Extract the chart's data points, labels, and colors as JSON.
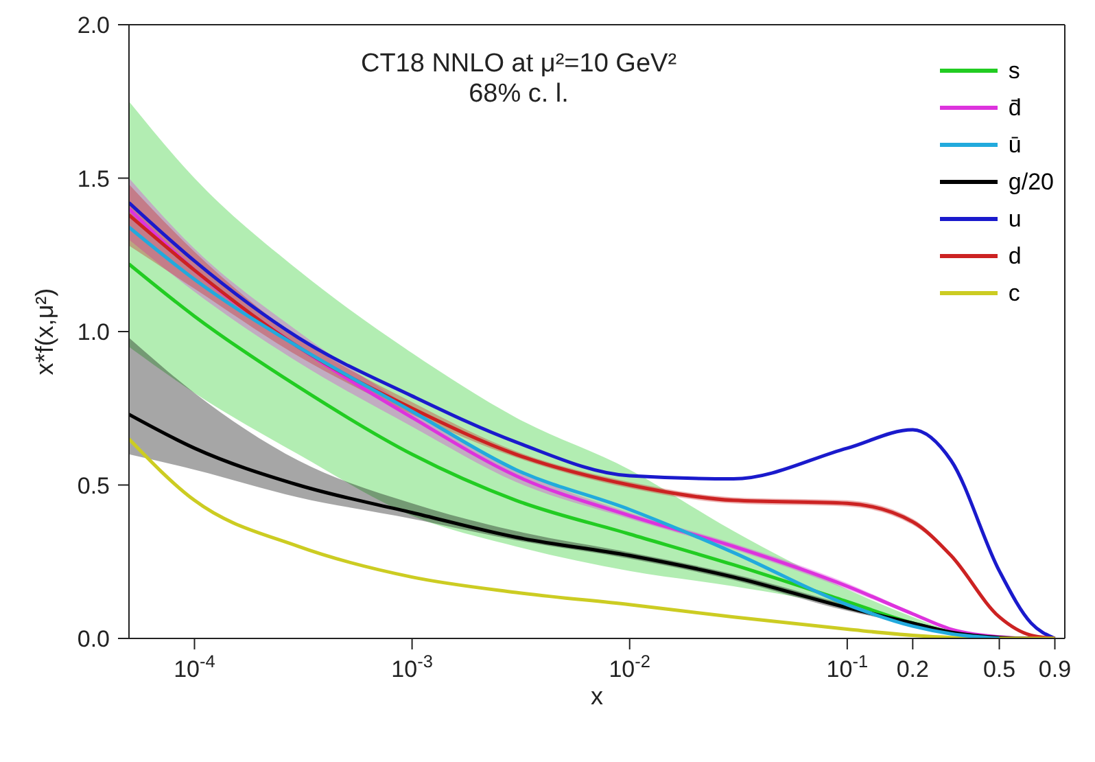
{
  "chart_data": {
    "type": "line",
    "title": "CT18 NNLO at μ²=10 GeV²",
    "subtitle": "68% c. l.",
    "xlabel": "x",
    "ylabel": "x*f(x,μ²)",
    "x": [
      5e-05,
      0.0001,
      0.0003,
      0.001,
      0.003,
      0.01,
      0.03,
      0.1,
      0.2,
      0.3,
      0.5,
      0.7,
      0.9
    ],
    "series": [
      {
        "name": "s",
        "color": "#22cc22",
        "values": [
          1.22,
          1.05,
          0.82,
          0.6,
          0.45,
          0.34,
          0.24,
          0.12,
          0.05,
          0.02,
          null,
          null,
          null
        ],
        "lower": [
          0.95,
          0.8,
          0.6,
          0.4,
          0.3,
          0.22,
          0.17,
          0.1,
          0.04,
          0.015,
          0,
          0,
          0
        ],
        "upper": [
          1.75,
          1.5,
          1.2,
          0.93,
          0.72,
          0.55,
          0.35,
          0.16,
          0.07,
          0.025,
          0.003,
          0,
          0
        ]
      },
      {
        "name": "d̄",
        "color": "#dd33dd",
        "values": [
          1.4,
          1.2,
          0.95,
          0.72,
          0.53,
          0.4,
          0.3,
          0.17,
          0.08,
          0.03,
          0.005,
          0,
          0
        ],
        "lower": [
          1.3,
          1.13,
          0.9,
          0.69,
          0.51,
          0.39,
          0.29,
          0.16,
          0.075,
          0.028,
          0.004,
          0,
          0
        ],
        "upper": [
          1.5,
          1.27,
          1.0,
          0.75,
          0.55,
          0.41,
          0.31,
          0.18,
          0.085,
          0.032,
          0.006,
          0,
          0
        ]
      },
      {
        "name": "ū",
        "color": "#22aadd",
        "values": [
          1.34,
          1.17,
          0.95,
          0.74,
          0.55,
          0.42,
          0.28,
          0.11,
          0.04,
          0.015,
          0,
          null,
          null
        ]
      },
      {
        "name": "g/20",
        "color": "#000000",
        "values": [
          0.73,
          0.62,
          0.5,
          0.41,
          0.33,
          0.27,
          0.2,
          0.1,
          0.05,
          0.02,
          0.003,
          0,
          0
        ],
        "lower": [
          0.6,
          0.55,
          0.46,
          0.39,
          0.32,
          0.26,
          0.19,
          0.09,
          0.045,
          0.018,
          0.002,
          0,
          0
        ],
        "upper": [
          0.98,
          0.8,
          0.58,
          0.44,
          0.35,
          0.28,
          0.21,
          0.11,
          0.055,
          0.022,
          0.004,
          0,
          0
        ]
      },
      {
        "name": "u",
        "color": "#1a1acc",
        "values": [
          1.42,
          1.23,
          0.98,
          0.79,
          0.64,
          0.53,
          0.52,
          0.62,
          0.68,
          0.58,
          0.22,
          0.05,
          0
        ]
      },
      {
        "name": "d",
        "color": "#cc2222",
        "values": [
          1.38,
          1.2,
          0.95,
          0.75,
          0.6,
          0.5,
          0.45,
          0.44,
          0.38,
          0.27,
          0.07,
          0.01,
          0
        ],
        "lower": [
          1.28,
          1.14,
          0.92,
          0.73,
          0.59,
          0.49,
          0.44,
          0.43,
          0.37,
          0.265,
          0.068,
          0.01,
          0
        ],
        "upper": [
          1.48,
          1.26,
          0.98,
          0.77,
          0.61,
          0.51,
          0.46,
          0.45,
          0.39,
          0.275,
          0.072,
          0.01,
          0
        ]
      },
      {
        "name": "c",
        "color": "#cccc22",
        "values": [
          0.65,
          0.45,
          0.3,
          0.2,
          0.15,
          0.11,
          0.07,
          0.03,
          0.01,
          0.003,
          0,
          0,
          0
        ]
      }
    ],
    "log": "x",
    "xlim": [
      5e-05,
      1
    ],
    "xticks": [
      {
        "value": 0.0001,
        "label": "10$^{-4}$"
      },
      {
        "value": 0.001,
        "label": "10$^{-3}$"
      },
      {
        "value": 0.01,
        "label": "10$^{-2}$"
      },
      {
        "value": 0.1,
        "label": "10$^{-1}$"
      },
      0.2,
      0.5,
      0.9
    ],
    "ylim": [
      0,
      2
    ],
    "yticks": [
      {
        "value": 0,
        "label": "0.0"
      },
      0.5,
      {
        "value": 1,
        "label": "1.0"
      },
      1.5,
      {
        "value": 2,
        "label": "2.0"
      }
    ],
    "grid": false,
    "legend": "top right",
    "marker": "none",
    "line_style": "solid"
  }
}
